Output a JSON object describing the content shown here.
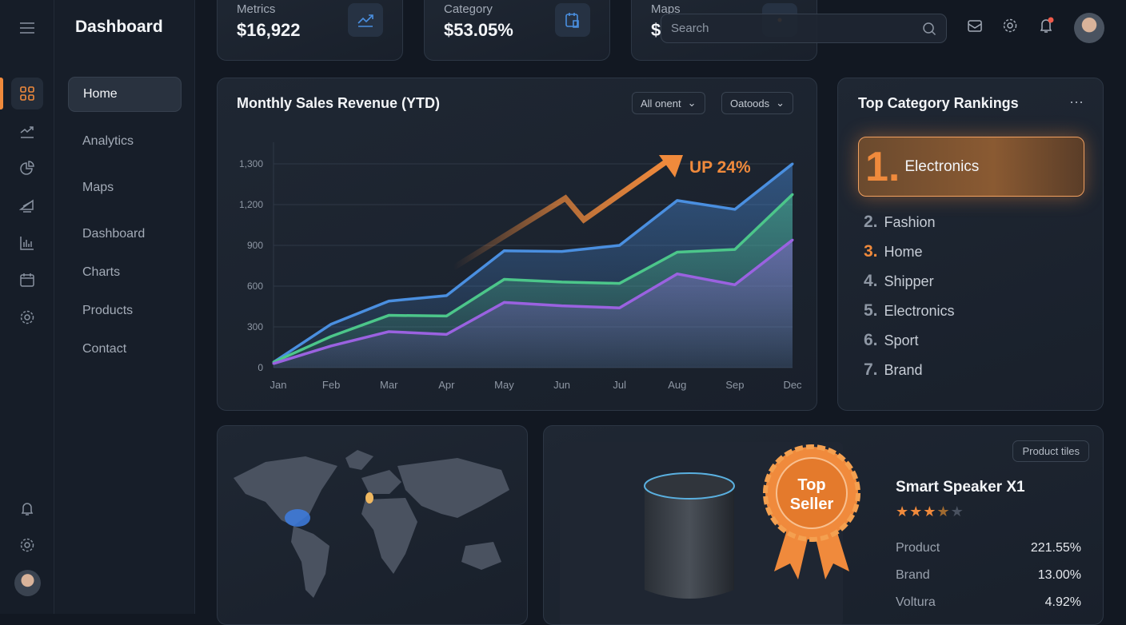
{
  "app": {
    "title": "Dashboard"
  },
  "nav": {
    "items": [
      {
        "label": "Home",
        "active": true
      },
      {
        "label": "Analytics"
      },
      {
        "label": "Maps"
      },
      {
        "label": "Dashboard"
      },
      {
        "label": "Charts"
      },
      {
        "label": "Products"
      },
      {
        "label": "Contact"
      }
    ]
  },
  "rail": {
    "icons": [
      "menu-icon",
      "dashboard-grid-icon",
      "trend-icon",
      "pie-chart-icon",
      "report-icon",
      "bar-chart-icon",
      "calendar-icon",
      "settings-icon",
      "bell-icon",
      "settings-icon",
      "avatar"
    ]
  },
  "stats": [
    {
      "label": "Metrics",
      "value": "$16,922",
      "icon": "trend-icon"
    },
    {
      "label": "Category",
      "value": "$53.05%",
      "icon": "calendar-icon"
    },
    {
      "label": "Maps",
      "value": "$",
      "icon": "pin-icon"
    }
  ],
  "search": {
    "placeholder": "Search"
  },
  "header_icons": [
    "mail-icon",
    "settings-icon",
    "bell-icon",
    "avatar"
  ],
  "colors": {
    "accent": "#f08a3c",
    "blue": "#4a8fe0",
    "green": "#4cc68a",
    "purple": "#9a62e0"
  },
  "sales_card": {
    "title": "Monthly Sales Revenue (YTD)",
    "dropdown1": "All onent",
    "dropdown2": "Oatoods",
    "annotation": "UP 24%"
  },
  "chart_data": {
    "type": "area",
    "title": "Monthly Sales Revenue (YTD)",
    "categories": [
      "Jan",
      "Feb",
      "Mar",
      "Apr",
      "May",
      "Jun",
      "Jul",
      "Aug",
      "Sep",
      "Dec"
    ],
    "y_ticks": [
      "0",
      "300",
      "600",
      "900",
      "1,200",
      "1,300"
    ],
    "y_tick_values": [
      0,
      300,
      600,
      900,
      1200,
      1300
    ],
    "grid": true,
    "series": [
      {
        "color": "#4a8fe0",
        "values": [
          40,
          320,
          490,
          530,
          860,
          855,
          900,
          1210,
          1165,
          1300
        ]
      },
      {
        "color": "#4cc68a",
        "values": [
          40,
          230,
          385,
          380,
          650,
          630,
          620,
          850,
          870,
          1225
        ]
      },
      {
        "color": "#9a62e0",
        "values": [
          30,
          160,
          265,
          245,
          480,
          455,
          440,
          690,
          610,
          940
        ]
      }
    ],
    "annotation": "UP 24%"
  },
  "rankings": {
    "title": "Top Category Rankings",
    "top": {
      "rank": "1.",
      "name": "Electronics"
    },
    "items": [
      {
        "rank": "2.",
        "name": "Fashion"
      },
      {
        "rank": "3.",
        "name": "Home"
      },
      {
        "rank": "4.",
        "name": "Shipper"
      },
      {
        "rank": "5.",
        "name": "Electronics"
      },
      {
        "rank": "6.",
        "name": "Sport"
      },
      {
        "rank": "7.",
        "name": "Brand"
      }
    ]
  },
  "product": {
    "tag": "Product tiles",
    "badge_line1": "Top",
    "badge_line2": "Seller",
    "name": "Smart Speaker X1",
    "rating": 3.5,
    "rating_max": 5,
    "stats": [
      {
        "label": "Product",
        "value": "221.55%"
      },
      {
        "label": "Brand",
        "value": "13.00%"
      },
      {
        "label": "Voltura",
        "value": "4.92%"
      }
    ]
  }
}
